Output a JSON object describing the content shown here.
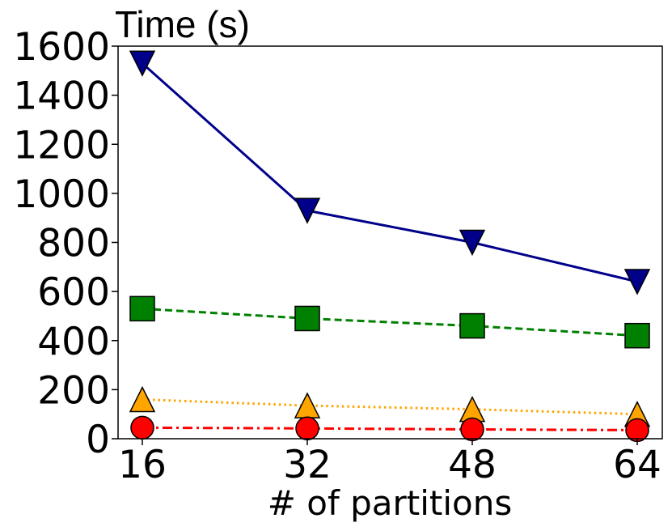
{
  "chart_data": {
    "type": "line",
    "title": "",
    "xlabel": "# of partitions",
    "ylabel": "Time (s)",
    "x": [
      16,
      32,
      48,
      64
    ],
    "xticks": [
      "16",
      "32",
      "48",
      "64"
    ],
    "yticks": [
      "0",
      "200",
      "400",
      "600",
      "800",
      "1000",
      "1200",
      "1400",
      "1600"
    ],
    "ylim": [
      0,
      1600
    ],
    "grid": false,
    "legend": "none",
    "series": [
      {
        "values": [
          1530,
          930,
          800,
          640
        ],
        "color": "#00008b",
        "marker": "triangle-down",
        "line_style": "solid"
      },
      {
        "values": [
          530,
          490,
          460,
          420
        ],
        "color": "#008000",
        "marker": "square",
        "line_style": "dashed"
      },
      {
        "values": [
          160,
          135,
          120,
          100
        ],
        "color": "#ffa500",
        "marker": "triangle-up",
        "line_style": "dotted"
      },
      {
        "values": [
          45,
          42,
          38,
          35
        ],
        "color": "#ff0000",
        "marker": "circle",
        "line_style": "dashdot"
      }
    ]
  }
}
